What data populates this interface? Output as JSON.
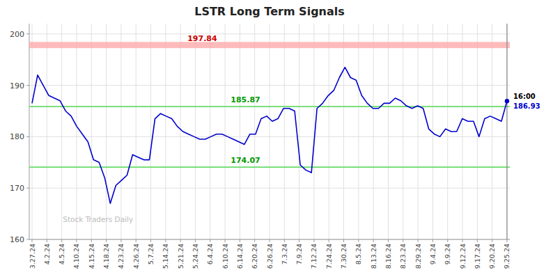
{
  "chart_data": {
    "type": "line",
    "title": "LSTR Long Term Signals",
    "color": "#0000cc",
    "values": [
      186.5,
      192.0,
      190.0,
      188.0,
      187.5,
      187.0,
      185.0,
      184.0,
      182.0,
      180.5,
      179.0,
      175.5,
      175.0,
      172.0,
      167.0,
      170.5,
      171.5,
      172.5,
      176.5,
      176.0,
      175.5,
      175.5,
      183.5,
      184.5,
      184.0,
      183.5,
      182.0,
      181.0,
      180.5,
      180.0,
      179.5,
      179.5,
      180.0,
      180.5,
      180.5,
      180.0,
      179.5,
      179.0,
      178.5,
      180.5,
      180.5,
      183.5,
      184.0,
      183.0,
      183.5,
      185.5,
      185.5,
      185.0,
      174.5,
      173.5,
      173.0,
      185.5,
      186.5,
      188.0,
      189.0,
      191.5,
      193.5,
      191.5,
      191.0,
      188.0,
      186.5,
      185.5,
      185.5,
      186.5,
      186.5,
      187.5,
      187.0,
      186.0,
      185.5,
      186.0,
      185.5,
      181.5,
      180.5,
      180.0,
      181.5,
      181.0,
      181.0,
      183.5,
      183.0,
      183.0,
      180.0,
      183.5,
      184.0,
      183.5,
      183.0,
      186.93
    ],
    "xlim": [
      -0.5,
      85.5
    ],
    "xticks": [
      {
        "value": 0,
        "label": "3.27.24"
      },
      {
        "value": 2.65625,
        "label": "4.2.24"
      },
      {
        "value": 5.3125,
        "label": "4.5.24"
      },
      {
        "value": 7.96875,
        "label": "4.10.24"
      },
      {
        "value": 10.625,
        "label": "4.15.24"
      },
      {
        "value": 13.28125,
        "label": "4.18.24"
      },
      {
        "value": 15.9375,
        "label": "4.23.24"
      },
      {
        "value": 18.59375,
        "label": "4.26.24"
      },
      {
        "value": 21.25,
        "label": "5.7.24"
      },
      {
        "value": 23.90625,
        "label": "5.14.24"
      },
      {
        "value": 26.5625,
        "label": "5.21.24"
      },
      {
        "value": 29.21875,
        "label": "5.24.24"
      },
      {
        "value": 31.875,
        "label": "6.4.24"
      },
      {
        "value": 34.53125,
        "label": "6.10.24"
      },
      {
        "value": 37.1875,
        "label": "6.14.24"
      },
      {
        "value": 39.84375,
        "label": "6.20.24"
      },
      {
        "value": 42.5,
        "label": "6.26.24"
      },
      {
        "value": 45.15625,
        "label": "7.3.24"
      },
      {
        "value": 47.8125,
        "label": "7.9.24"
      },
      {
        "value": 50.46875,
        "label": "7.12.24"
      },
      {
        "value": 53.125,
        "label": "7.24.24"
      },
      {
        "value": 55.78125,
        "label": "7.30.24"
      },
      {
        "value": 58.4375,
        "label": "8.5.24"
      },
      {
        "value": 61.09375,
        "label": "8.13.24"
      },
      {
        "value": 63.75,
        "label": "8.16.24"
      },
      {
        "value": 66.40625,
        "label": "8.23.24"
      },
      {
        "value": 69.0625,
        "label": "8.29.24"
      },
      {
        "value": 71.71875,
        "label": "9.4.24"
      },
      {
        "value": 74.375,
        "label": "9.9.24"
      },
      {
        "value": 77.03125,
        "label": "9.12.24"
      },
      {
        "value": 79.6875,
        "label": "9.17.24"
      },
      {
        "value": 82.34375,
        "label": "9.20.24"
      },
      {
        "value": 85,
        "label": "9.25.24"
      }
    ],
    "ylim": [
      160,
      202
    ],
    "yticks": [
      160,
      170,
      180,
      190,
      200
    ],
    "grid": true,
    "hlines": [
      {
        "value": 197.84,
        "color": "#ffaaaa",
        "label_color": "#cc0000",
        "band": true
      },
      {
        "value": 185.87,
        "color": "#66dd66",
        "label_color": "#009900",
        "band": false
      },
      {
        "value": 174.07,
        "color": "#66dd66",
        "label_color": "#009900",
        "band": false
      }
    ],
    "annotations": [
      {
        "text": "Stock Traders Daily",
        "color": "#bbbbbb"
      },
      {
        "text": "16:00",
        "color": "#000000"
      }
    ]
  }
}
